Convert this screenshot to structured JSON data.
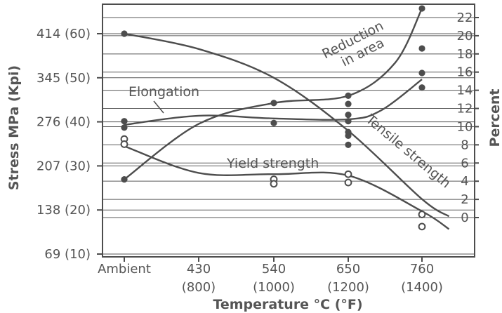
{
  "chart_data": {
    "type": "line",
    "title": "",
    "xlabel": "Temperature °C (°F)",
    "ylabel_left": "Stress MPa (Kpi)",
    "ylabel_right": "Percent",
    "x_ticks": [
      {
        "c": "Ambient",
        "f": ""
      },
      {
        "c": "430",
        "f": "(800)"
      },
      {
        "c": "540",
        "f": "(1000)"
      },
      {
        "c": "650",
        "f": "(1200)"
      },
      {
        "c": "760",
        "f": "(1400)"
      }
    ],
    "y_left_ticks": [
      {
        "label": "69 (10)",
        "value": 69
      },
      {
        "label": "138 (20)",
        "value": 138
      },
      {
        "label": "207 (30)",
        "value": 207
      },
      {
        "label": "276 (40)",
        "value": 276
      },
      {
        "label": "345 (50)",
        "value": 345
      },
      {
        "label": "414 (60)",
        "value": 414
      }
    ],
    "y_right_ticks": [
      "0",
      "2",
      "4",
      "6",
      "8",
      "10",
      "12",
      "14",
      "16",
      "18",
      "20",
      "22"
    ],
    "ylim_left": [
      69,
      414
    ],
    "ylim_right": [
      0,
      22
    ],
    "grid": true,
    "series": [
      {
        "name": "Tensile strength",
        "axis": "left",
        "curve": [
          [
            "Ambient",
            414
          ],
          [
            "430",
            390
          ],
          [
            "540",
            345
          ],
          [
            "650",
            262
          ],
          [
            "760",
            155
          ],
          [
            "800",
            128
          ]
        ],
        "points": [
          [
            "Ambient",
            414
          ]
        ]
      },
      {
        "name": "Yield strength",
        "axis": "left",
        "curve": [
          [
            "Ambient",
            238
          ],
          [
            "430",
            196
          ],
          [
            "540",
            194
          ],
          [
            "650",
            192
          ],
          [
            "760",
            136
          ],
          [
            "800",
            108
          ]
        ],
        "points_open": [
          [
            "Ambient",
            249
          ],
          [
            "Ambient",
            241
          ],
          [
            "540",
            186
          ],
          [
            "540",
            179
          ],
          [
            "650",
            194
          ],
          [
            "650",
            181
          ],
          [
            "760",
            131
          ],
          [
            "760",
            112
          ]
        ]
      },
      {
        "name": "Elongation",
        "axis": "right",
        "curve": [
          [
            "Ambient",
            10.2
          ],
          [
            "430",
            11.2
          ],
          [
            "540",
            10.9
          ],
          [
            "650",
            10.8
          ],
          [
            "700",
            11.8
          ],
          [
            "760",
            15.2
          ]
        ],
        "points": [
          [
            "Ambient",
            10.6
          ],
          [
            "Ambient",
            9.9
          ],
          [
            "540",
            10.4
          ],
          [
            "650",
            10.6
          ],
          [
            "650",
            11.3
          ],
          [
            "760",
            15.9
          ],
          [
            "760",
            14.3
          ]
        ]
      },
      {
        "name": "Reduction in area",
        "axis": "right",
        "curve": [
          [
            "Ambient",
            4.2
          ],
          [
            "430",
            10.3
          ],
          [
            "540",
            12.6
          ],
          [
            "650",
            13.4
          ],
          [
            "720",
            17.0
          ],
          [
            "760",
            23.0
          ]
        ],
        "points": [
          [
            "Ambient",
            4.2
          ],
          [
            "540",
            12.6
          ],
          [
            "650",
            13.4
          ],
          [
            "650",
            12.5
          ],
          [
            "650",
            9.4
          ],
          [
            "650",
            9.0
          ],
          [
            "650",
            8.0
          ],
          [
            "760",
            23.0
          ],
          [
            "760",
            18.6
          ]
        ]
      }
    ],
    "annotations": {
      "elongation": "Elongation",
      "yield_strength": "Yield strength",
      "tensile_strength": "Tensile strength",
      "reduction_line1": "Reduction",
      "reduction_line2": "in area"
    },
    "colors": {
      "line": "#4d4d4d",
      "text": "#555555",
      "grid": "#5a5a5a"
    }
  }
}
